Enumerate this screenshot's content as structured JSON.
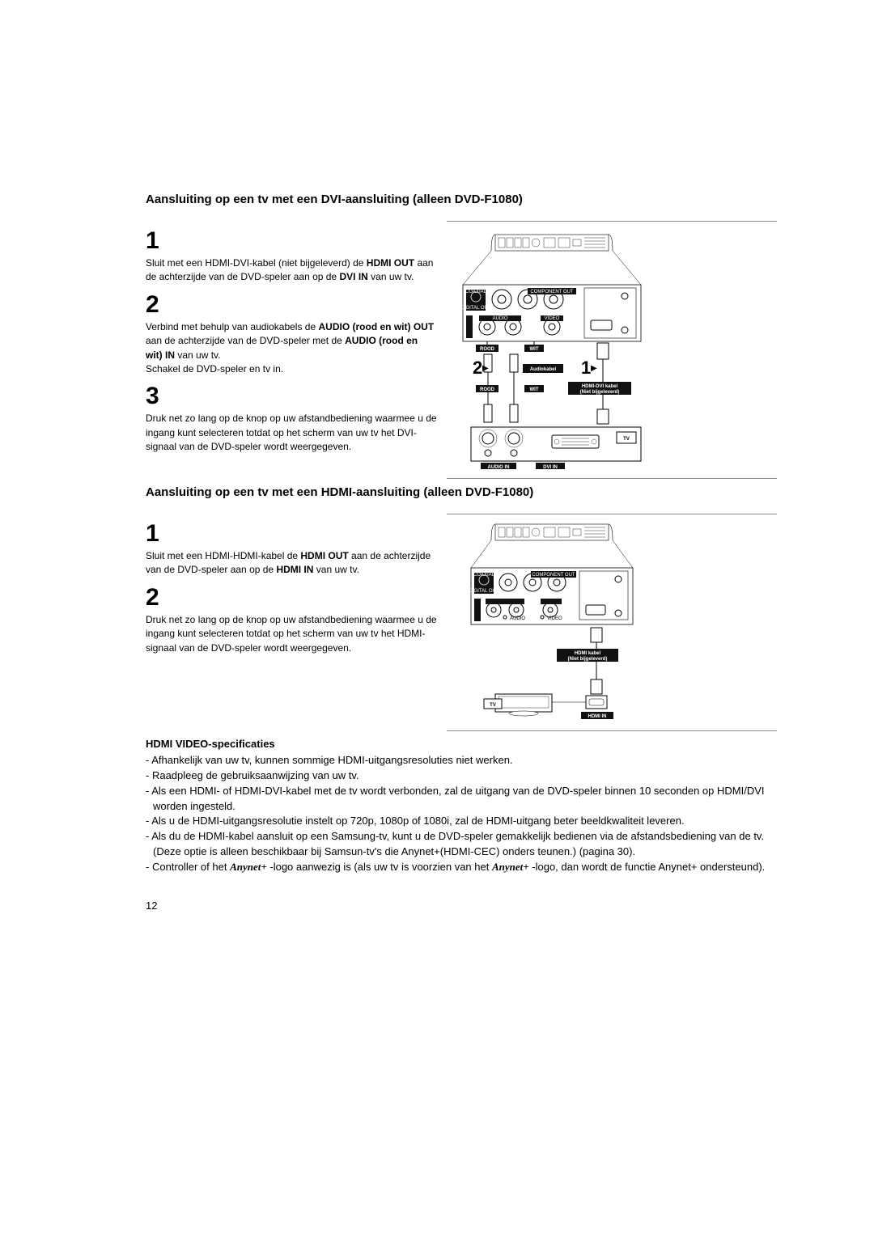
{
  "section1": {
    "title": "Aansluiting op een tv met een DVI-aansluiting (alleen DVD-F1080)",
    "steps": [
      {
        "num": "1",
        "html": "Sluit met een HDMI-DVI-kabel (niet bijgeleverd) de <b>HDMI OUT</b> aan de achterzijde van de DVD-speler aan op de <b>DVI IN</b> van uw tv."
      },
      {
        "num": "2",
        "html": "Verbind met behulp van audiokabels de <b>AUDIO (rood en wit) OUT</b> aan de achterzijde van de DVD-speler met de <b>AUDIO (rood en wit) IN</b> van uw tv.<br>Schakel de DVD-speler en tv in."
      },
      {
        "num": "3",
        "html": "Druk net zo lang op de knop op uw afstandbediening waarmee u de ingang kunt selecteren totdat op het scherm van uw tv het DVI-signaal van de DVD-speler wordt weergegeven."
      }
    ],
    "diagram": {
      "labels": {
        "rood1": "ROOD",
        "wit1": "WIT",
        "rood2": "ROOD",
        "wit2": "WIT",
        "audiokabel": "Audiokabel",
        "hdmidvi1": "HDMI-DVI kabel",
        "hdmidvi2": "(Niet bijgeleverd)",
        "audio_in": "AUDIO IN",
        "dvi_in": "DVI IN",
        "tv": "TV",
        "audio": "AUDIO",
        "video": "VIDEO",
        "coaxial": "COAXIAL",
        "digital": "DIGITAL OUT",
        "component": "COMPONENT OUT",
        "num1": "1",
        "num2": "2",
        "tri": "▶"
      }
    }
  },
  "section2": {
    "title": "Aansluiting op een tv met een HDMI-aansluiting (alleen DVD-F1080)",
    "steps": [
      {
        "num": "1",
        "html": "Sluit met een HDMI-HDMI-kabel de <b>HDMI OUT</b> aan de achterzijde van de DVD-speler aan op de <b>HDMI IN</b> van uw tv."
      },
      {
        "num": "2",
        "html": "Druk net zo lang op de knop op uw afstandbediening waarmee u de ingang kunt selecteren totdat op het scherm van uw tv het HDMI-signaal van de DVD-speler wordt weergegeven."
      }
    ],
    "diagram": {
      "labels": {
        "hdmi1": "HDMI kabel",
        "hdmi2": "(Niet bijgeleverd)",
        "hdmi_in": "HDMI IN",
        "tv": "TV",
        "audio": "AUDIO",
        "video": "VIDEO",
        "coaxial": "COAXIAL",
        "digital": "DIGITAL OUT",
        "component": "COMPONENT OUT"
      }
    }
  },
  "specs": {
    "title": "HDMI VIDEO-specificaties",
    "items": [
      "Afhankelijk van uw tv, kunnen sommige HDMI-uitgangsresoluties niet werken.",
      "Raadpleeg de gebruiksaanwijzing van uw tv.",
      "Als een HDMI- of HDMI-DVI-kabel met de tv wordt verbonden, zal de uitgang van de DVD-speler binnen 10 seconden op HDMI/DVI worden ingesteld.",
      "Als u de HDMI-uitgangsresolutie instelt op 720p, 1080p of 1080i, zal de HDMI-uitgang beter beeldkwaliteit leveren.",
      "Als du de HDMI-kabel aansluit op een Samsung-tv, kunt u de DVD-speler gemakkelijk bedienen via de afstandsbediening van de tv. (Deze optie is alleen beschikbaar bij Samsun-tv's die Anynet+(HDMI-CEC) onders teunen.) (pagina 30)."
    ],
    "anynet_item": {
      "pre": "Controller of het ",
      "logo": "Anynet+",
      "mid": " -logo aanwezig is (als uw tv is voorzien van het ",
      "post": " -logo, dan wordt de functie Anynet+ ondersteund)."
    }
  },
  "page_number": "12"
}
